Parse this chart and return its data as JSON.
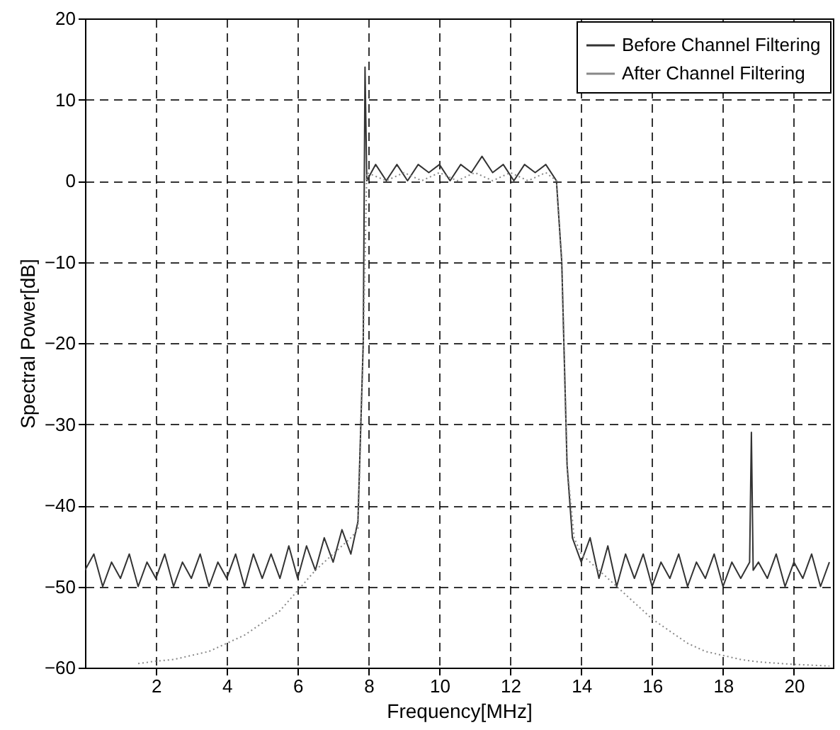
{
  "chart_data": {
    "type": "line",
    "xlabel": "Frequency[MHz]",
    "ylabel": "Spectral Power[dB]",
    "xlim": [
      0,
      21.1
    ],
    "ylim": [
      -60,
      20
    ],
    "xticks": [
      2,
      4,
      6,
      8,
      10,
      12,
      14,
      16,
      18,
      20
    ],
    "yticks": [
      -60,
      -50,
      -40,
      -30,
      -20,
      -10,
      0,
      10,
      20
    ],
    "grid": true,
    "legend": "top right",
    "series": [
      {
        "name": "Before Channel Filtering",
        "color": "#333333",
        "line_style": "solid",
        "x": [
          0,
          0.25,
          0.5,
          0.75,
          1,
          1.25,
          1.5,
          1.75,
          2,
          2.25,
          2.5,
          2.75,
          3,
          3.25,
          3.5,
          3.75,
          4,
          4.25,
          4.5,
          4.75,
          5,
          5.25,
          5.5,
          5.75,
          6,
          6.25,
          6.5,
          6.75,
          7,
          7.25,
          7.5,
          7.7,
          7.85,
          7.9,
          7.95,
          8.2,
          8.5,
          8.8,
          9.1,
          9.4,
          9.7,
          10,
          10.3,
          10.6,
          10.9,
          11.2,
          11.5,
          11.8,
          12.1,
          12.4,
          12.7,
          13,
          13.3,
          13.45,
          13.6,
          13.75,
          14,
          14.25,
          14.5,
          14.75,
          15,
          15.25,
          15.5,
          15.75,
          16,
          16.25,
          16.5,
          16.75,
          17,
          17.25,
          17.5,
          17.75,
          18,
          18.25,
          18.5,
          18.75,
          18.8,
          18.85,
          19,
          19.25,
          19.5,
          19.75,
          20,
          20.25,
          20.5,
          20.75,
          21
        ],
        "values": [
          -48,
          -46,
          -50,
          -47,
          -49,
          -46,
          -50,
          -47,
          -49,
          -46,
          -50,
          -47,
          -49,
          -46,
          -50,
          -47,
          -49,
          -46,
          -50,
          -46,
          -49,
          -46,
          -49,
          -45,
          -49,
          -45,
          -48,
          -44,
          -47,
          -43,
          -46,
          -42,
          -20,
          14,
          0,
          2,
          0,
          2,
          0,
          2,
          1,
          2,
          0,
          2,
          1,
          3,
          1,
          2,
          0,
          2,
          1,
          2,
          0,
          -10,
          -35,
          -44,
          -47,
          -44,
          -49,
          -45,
          -50,
          -46,
          -49,
          -46,
          -50,
          -47,
          -49,
          -46,
          -50,
          -47,
          -49,
          -46,
          -50,
          -47,
          -49,
          -47,
          -31,
          -48,
          -47,
          -49,
          -46,
          -50,
          -47,
          -49,
          -46,
          -50,
          -47
        ]
      },
      {
        "name": "After Channel Filtering",
        "color": "#888888",
        "line_style": "dotted",
        "x": [
          1.5,
          2,
          2.5,
          3,
          3.5,
          4,
          4.5,
          5,
          5.5,
          6,
          6.5,
          7,
          7.5,
          7.7,
          7.85,
          7.95,
          8.5,
          9,
          9.5,
          10,
          10.5,
          11,
          11.5,
          12,
          12.5,
          13,
          13.3,
          13.45,
          13.6,
          13.8,
          14,
          14.5,
          15,
          15.5,
          16,
          16.5,
          17,
          17.5,
          18,
          18.5,
          19,
          20,
          21
        ],
        "values": [
          -59.5,
          -59.2,
          -59,
          -58.5,
          -58,
          -57,
          -56,
          -54.5,
          -53,
          -50.5,
          -48,
          -46,
          -44,
          -43,
          -20,
          1,
          0,
          1,
          0,
          1,
          0,
          1,
          0,
          1,
          0,
          1,
          0,
          -10,
          -35,
          -44,
          -46,
          -48,
          -50,
          -52,
          -54,
          -55.5,
          -57,
          -58,
          -58.5,
          -59,
          -59.3,
          -59.6,
          -59.8
        ]
      }
    ]
  }
}
